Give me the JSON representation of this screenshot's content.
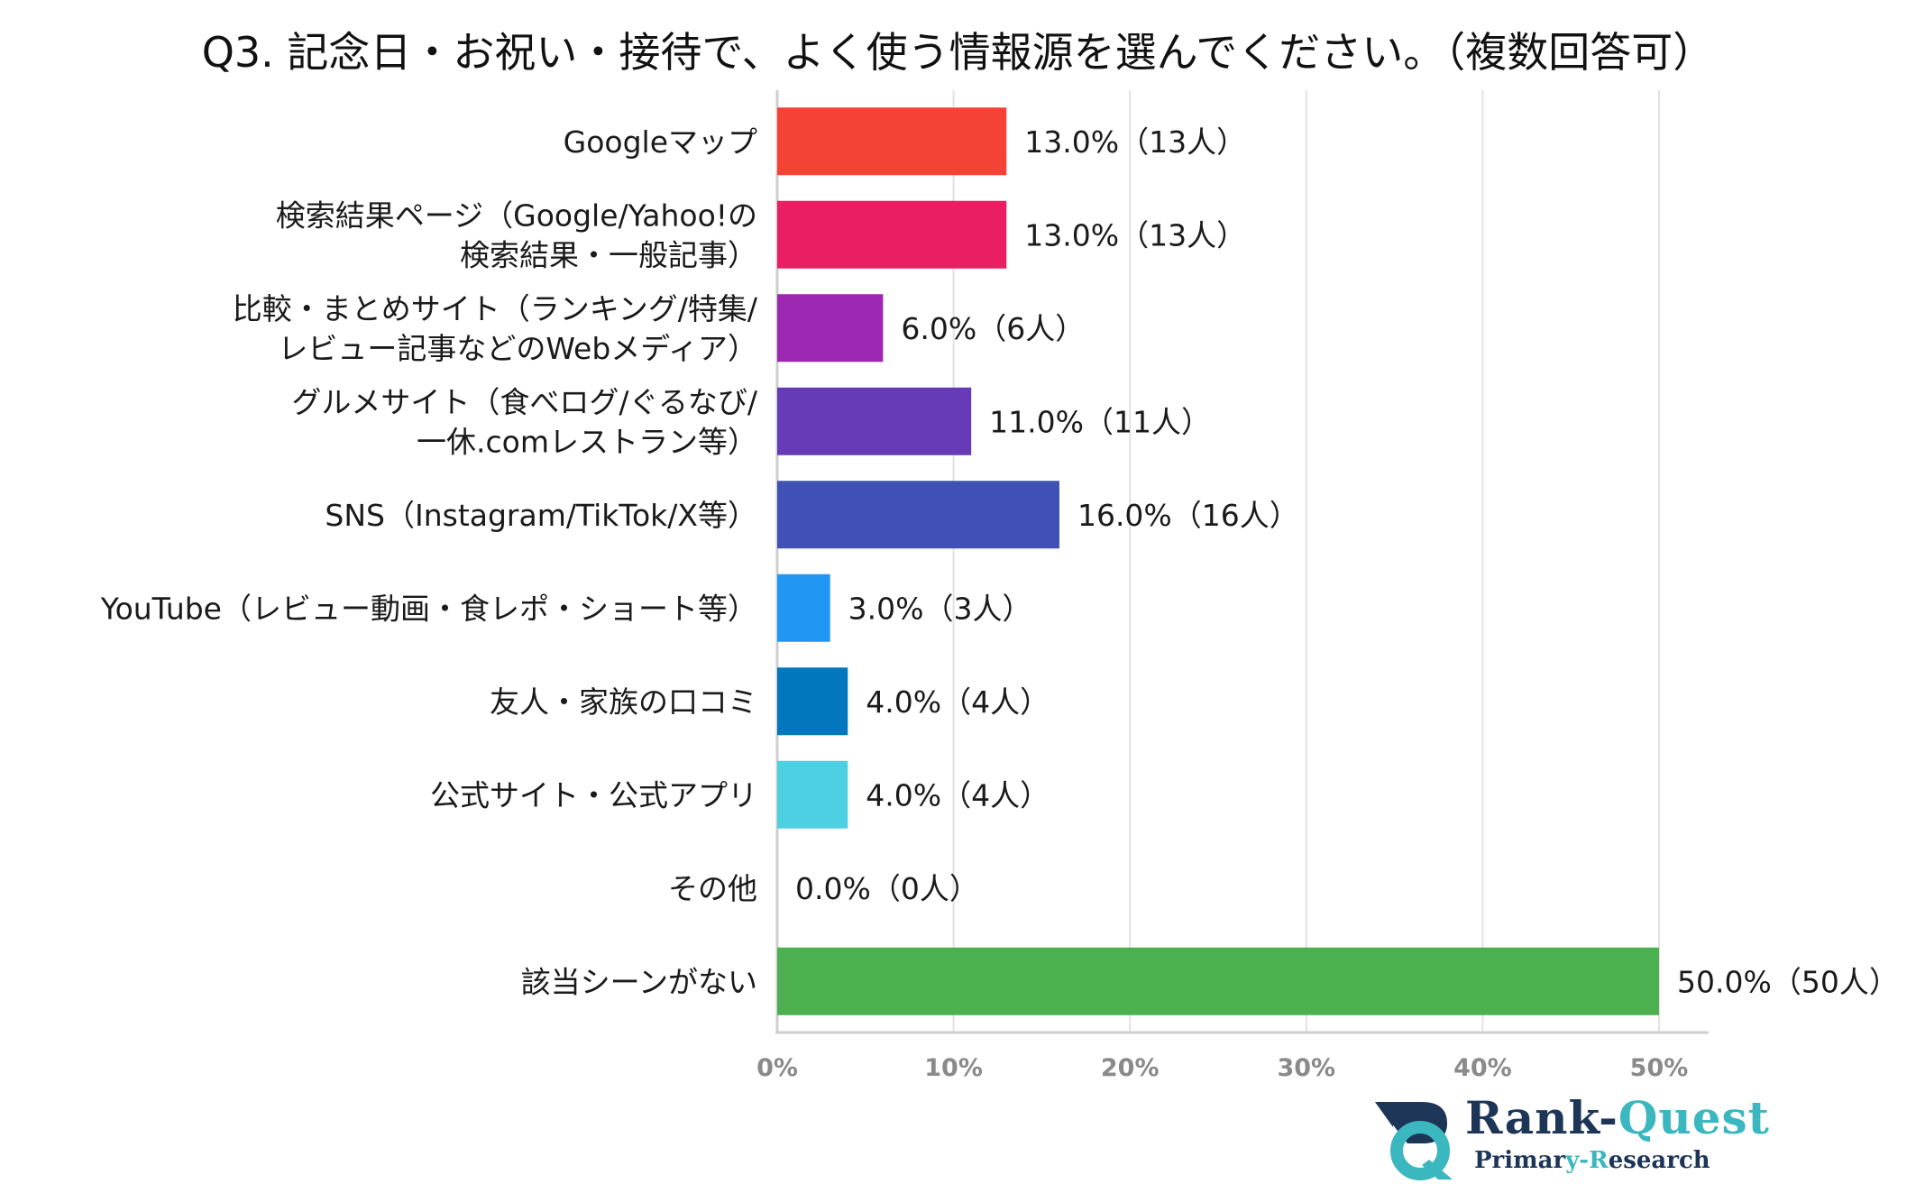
{
  "chart_data": {
    "type": "bar",
    "orientation": "horizontal",
    "title": "Q3. 記念日・お祝い・接待で、よく使う情報源を選んでください。（複数回答可）",
    "xlim": [
      0,
      50
    ],
    "xticks": [
      "0%",
      "10%",
      "20%",
      "30%",
      "40%",
      "50%"
    ],
    "grid": true,
    "categories": [
      {
        "lines": [
          "Googleマップ"
        ],
        "value": 13.0,
        "label": "13.0%（13人）",
        "color": "#f44336"
      },
      {
        "lines": [
          "検索結果ページ（Google/Yahoo!の",
          "検索結果・一般記事）"
        ],
        "value": 13.0,
        "label": "13.0%（13人）",
        "color": "#e91e63"
      },
      {
        "lines": [
          "比較・まとめサイト（ランキング/特集/",
          "レビュー記事などのWebメディア）"
        ],
        "value": 6.0,
        "label": "6.0%（6人）",
        "color": "#9c27b0"
      },
      {
        "lines": [
          "グルメサイト（食べログ/ぐるなび/",
          "一休.comレストラン等）"
        ],
        "value": 11.0,
        "label": "11.0%（11人）",
        "color": "#673ab7"
      },
      {
        "lines": [
          "SNS（Instagram/TikTok/X等）"
        ],
        "value": 16.0,
        "label": "16.0%（16人）",
        "color": "#3f51b5"
      },
      {
        "lines": [
          "YouTube（レビュー動画・食レポ・ショート等）"
        ],
        "value": 3.0,
        "label": "3.0%（3人）",
        "color": "#2196f3"
      },
      {
        "lines": [
          "友人・家族の口コミ"
        ],
        "value": 4.0,
        "label": "4.0%（4人）",
        "color": "#0277bd"
      },
      {
        "lines": [
          "公式サイト・公式アプリ"
        ],
        "value": 4.0,
        "label": "4.0%（4人）",
        "color": "#4dd0e1"
      },
      {
        "lines": [
          "その他"
        ],
        "value": 0.0,
        "label": "0.0%（0人）",
        "color": "#9e9e9e"
      },
      {
        "lines": [
          "該当シーンがない"
        ],
        "value": 50.0,
        "label": "50.0%（50人）",
        "color": "#4caf50"
      }
    ]
  },
  "logo": {
    "main_prefix": "Rank-",
    "main_suffix": "Quest",
    "sub_prefix": "Primar",
    "sub_highlight": "y-R",
    "sub_suffix": "esearch"
  }
}
